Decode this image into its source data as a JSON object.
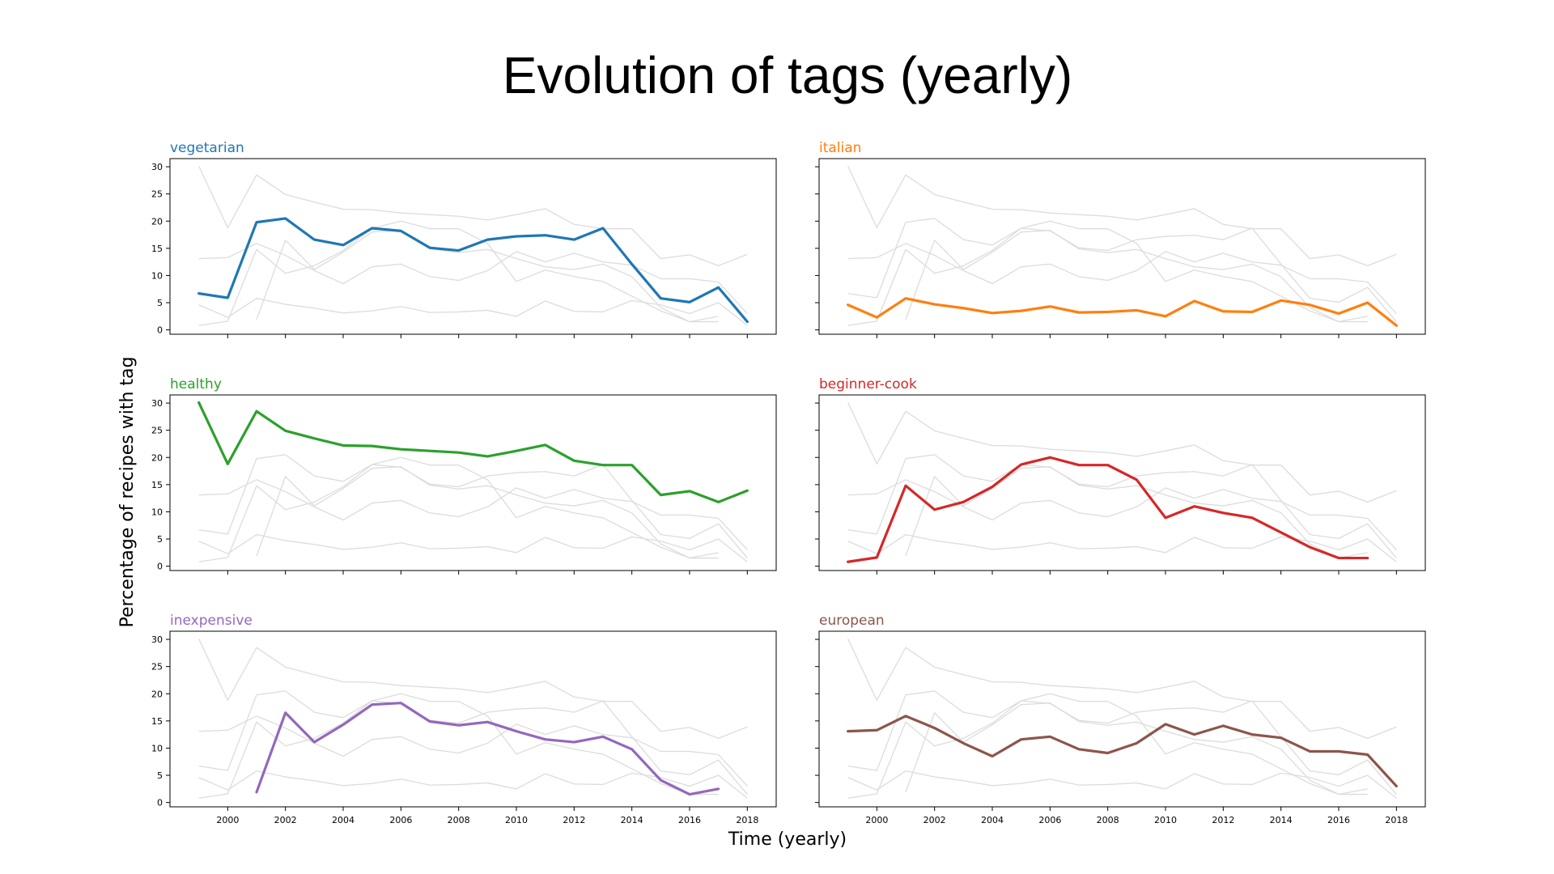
{
  "chart_data": {
    "type": "line",
    "title": "Evolution of tags (yearly)",
    "xlabel": "Time (yearly)",
    "ylabel": "Percentage of recipes with tag",
    "x_ticks": [
      "2000",
      "2002",
      "2004",
      "2006",
      "2008",
      "2010",
      "2012",
      "2014",
      "2016",
      "2018"
    ],
    "y_ticks": [
      "0",
      "5",
      "10",
      "15",
      "20",
      "25",
      "30"
    ],
    "xlim": [
      1998,
      2019
    ],
    "ylim": [
      -0.8,
      31.5
    ],
    "layout": "3 rows x 2 columns, shared axes",
    "grid": false,
    "legend": "none (series name shown above each panel)",
    "background_series_color": "#dcdcdc",
    "series": [
      {
        "name": "vegetarian",
        "color": "#1f77b4",
        "points": [
          [
            1999,
            6.7
          ],
          [
            2000,
            5.9
          ],
          [
            2001,
            19.8
          ],
          [
            2002,
            20.5
          ],
          [
            2003,
            16.6
          ],
          [
            2004,
            15.6
          ],
          [
            2005,
            18.7
          ],
          [
            2006,
            18.2
          ],
          [
            2007,
            15.1
          ],
          [
            2008,
            14.6
          ],
          [
            2009,
            16.6
          ],
          [
            2010,
            17.2
          ],
          [
            2011,
            17.4
          ],
          [
            2012,
            16.6
          ],
          [
            2013,
            18.7
          ],
          [
            2014,
            12.1
          ],
          [
            2015,
            5.8
          ],
          [
            2016,
            5.1
          ],
          [
            2017,
            7.8
          ],
          [
            2018,
            1.5
          ]
        ]
      },
      {
        "name": "italian",
        "color": "#ff7f0e",
        "points": [
          [
            1999,
            4.6
          ],
          [
            2000,
            2.3
          ],
          [
            2001,
            5.8
          ],
          [
            2002,
            4.7
          ],
          [
            2003,
            4.0
          ],
          [
            2004,
            3.1
          ],
          [
            2005,
            3.5
          ],
          [
            2006,
            4.3
          ],
          [
            2007,
            3.2
          ],
          [
            2008,
            3.3
          ],
          [
            2009,
            3.6
          ],
          [
            2010,
            2.5
          ],
          [
            2011,
            5.3
          ],
          [
            2012,
            3.4
          ],
          [
            2013,
            3.3
          ],
          [
            2014,
            5.4
          ],
          [
            2015,
            4.6
          ],
          [
            2016,
            3.0
          ],
          [
            2017,
            5.0
          ],
          [
            2018,
            0.8
          ]
        ]
      },
      {
        "name": "healthy",
        "color": "#2ca02c",
        "points": [
          [
            1999,
            30.1
          ],
          [
            2000,
            18.8
          ],
          [
            2001,
            28.5
          ],
          [
            2002,
            24.9
          ],
          [
            2003,
            23.5
          ],
          [
            2004,
            22.2
          ],
          [
            2005,
            22.1
          ],
          [
            2006,
            21.5
          ],
          [
            2007,
            21.2
          ],
          [
            2008,
            20.9
          ],
          [
            2009,
            20.2
          ],
          [
            2010,
            21.2
          ],
          [
            2011,
            22.3
          ],
          [
            2012,
            19.4
          ],
          [
            2013,
            18.6
          ],
          [
            2014,
            18.6
          ],
          [
            2015,
            13.1
          ],
          [
            2016,
            13.8
          ],
          [
            2017,
            11.8
          ],
          [
            2018,
            13.9
          ]
        ]
      },
      {
        "name": "beginner-cook",
        "color": "#d62728",
        "points": [
          [
            1999,
            0.8
          ],
          [
            2000,
            1.6
          ],
          [
            2001,
            14.8
          ],
          [
            2002,
            10.4
          ],
          [
            2003,
            11.8
          ],
          [
            2004,
            14.6
          ],
          [
            2005,
            18.7
          ],
          [
            2006,
            20.0
          ],
          [
            2007,
            18.6
          ],
          [
            2008,
            18.6
          ],
          [
            2009,
            15.9
          ],
          [
            2010,
            8.9
          ],
          [
            2011,
            11.0
          ],
          [
            2012,
            9.8
          ],
          [
            2013,
            8.9
          ],
          [
            2014,
            6.2
          ],
          [
            2015,
            3.5
          ],
          [
            2016,
            1.5
          ],
          [
            2017,
            1.5
          ]
        ]
      },
      {
        "name": "inexpensive",
        "color": "#9467bd",
        "points": [
          [
            2001,
            1.9
          ],
          [
            2002,
            16.5
          ],
          [
            2003,
            11.1
          ],
          [
            2004,
            14.3
          ],
          [
            2005,
            18.0
          ],
          [
            2006,
            18.3
          ],
          [
            2007,
            14.9
          ],
          [
            2008,
            14.2
          ],
          [
            2009,
            14.8
          ],
          [
            2010,
            13.1
          ],
          [
            2011,
            11.6
          ],
          [
            2012,
            11.1
          ],
          [
            2013,
            12.1
          ],
          [
            2014,
            9.8
          ],
          [
            2015,
            4.1
          ],
          [
            2016,
            1.5
          ],
          [
            2017,
            2.5
          ]
        ]
      },
      {
        "name": "european",
        "color": "#8c564b",
        "points": [
          [
            1999,
            13.1
          ],
          [
            2000,
            13.3
          ],
          [
            2001,
            15.9
          ],
          [
            2002,
            13.7
          ],
          [
            2003,
            10.9
          ],
          [
            2004,
            8.5
          ],
          [
            2005,
            11.6
          ],
          [
            2006,
            12.1
          ],
          [
            2007,
            9.8
          ],
          [
            2008,
            9.1
          ],
          [
            2009,
            10.9
          ],
          [
            2010,
            14.4
          ],
          [
            2011,
            12.5
          ],
          [
            2012,
            14.1
          ],
          [
            2013,
            12.5
          ],
          [
            2014,
            11.9
          ],
          [
            2015,
            9.4
          ],
          [
            2016,
            9.4
          ],
          [
            2017,
            8.8
          ],
          [
            2018,
            3.0
          ]
        ]
      }
    ]
  }
}
